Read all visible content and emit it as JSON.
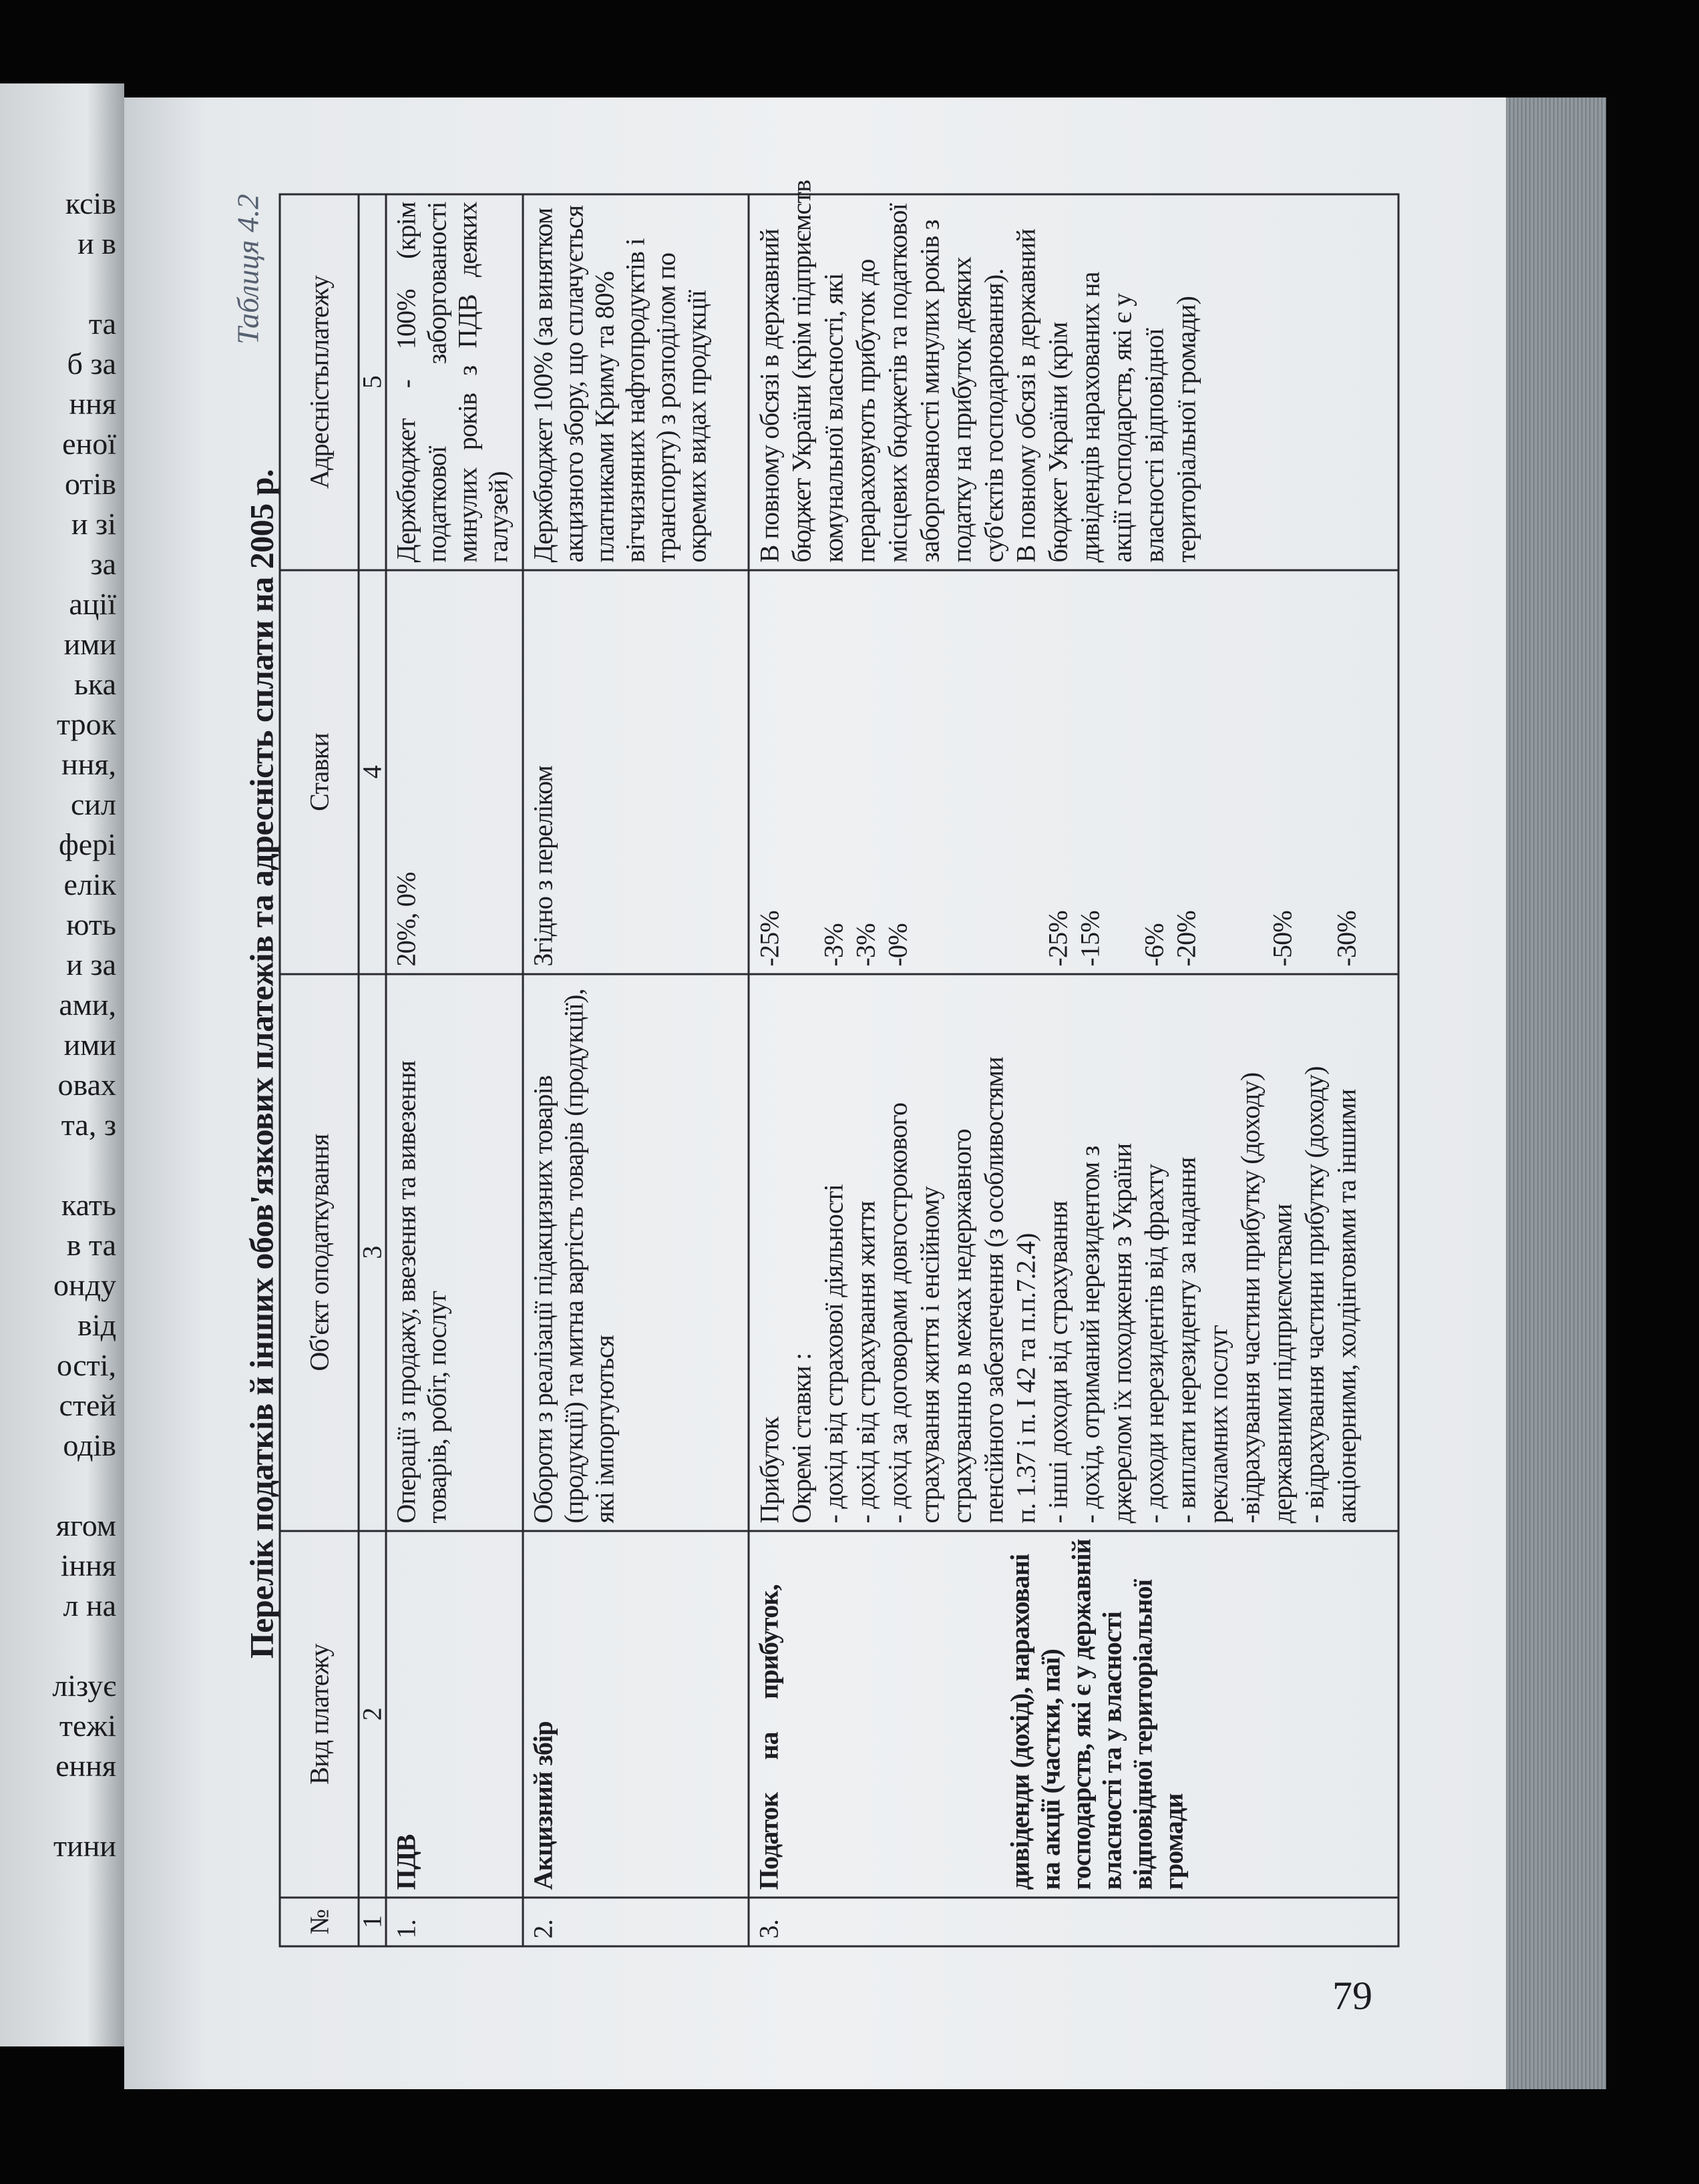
{
  "left_page": {
    "line_fragments": [
      "ксів",
      "и в",
      "",
      "та",
      "б за",
      "ння",
      "еної",
      "отів",
      "и зі",
      "за",
      "ації",
      "ими",
      "ька",
      "трок",
      "ння,",
      "сил",
      "фері",
      "елік",
      "ють",
      "и за",
      "ами,",
      "ими",
      "овах",
      "та, з",
      "",
      "кать",
      "в та",
      "онду",
      "від",
      "ості,",
      "стей",
      "одів",
      "",
      "ягом",
      "іння",
      "л на",
      "",
      "лізує",
      "тежі",
      "ення",
      "",
      "тини"
    ]
  },
  "caption": "Таблиця 4.2",
  "title": "Перелік податків й інших обов'язкових платежів та адресність сплати на 2005 р.",
  "table": {
    "headers": [
      "№",
      "Вид платежу",
      "Об'єкт оподаткування",
      "Ставки",
      "Адресністьплатежу"
    ],
    "column_numbers": [
      "1",
      "2",
      "3",
      "4",
      "5"
    ],
    "rows": [
      {
        "no": "1.",
        "type": "ПДВ",
        "object": "Операції з продажу, ввезення та вивезення товарів, робіт, послуг",
        "rates": "20%, 0%",
        "recipient": "Держбюджет - 100% (крім податкової заборгованості минулих років з ПДВ деяких галузей)"
      },
      {
        "no": "2.",
        "type": "Акцизний збір",
        "object": "Обороти з реалізації підакцизних товарів (продукції) та митна вартість товарів (продукції), які імпортуються",
        "rates": "Згідно з переліком",
        "recipient": "Держбюджет 100% (за винятком акцизного збору, що сплачується платниками Криму та 80% вітчизняних нафтопродуктів і транспорту) з розподілом по окремих видах продукції"
      },
      {
        "no": "3.",
        "type": "Податок на прибуток,",
        "type_extra": "дивіденди (дохід), нараховані на акції (частки, паї) господарств, які є у державній власності та у власності відповідної територіальної громади",
        "object_lines": [
          "Прибуток",
          "Окремі ставки :",
          "- дохід від страхової діяльності",
          "- дохід від страхування життя",
          "- дохід за договорами довгострокового",
          "страхування життя і енсійному",
          "страхуванню в межах недержавного",
          "пенсійного забезпечення (з особливостями",
          "п. 1.37 і п. І 42 та п.п.7.2.4)",
          "- інші доходи від страхування",
          "- дохід, отриманий нерезидентом з",
          "джерелом їх походження з України",
          "- доходи нерезидентів від фрахту",
          "- виплати нерезиденту за надання",
          "рекламних послуг",
          "-відрахування частини прибутку (доходу)",
          "державними підприємствами",
          "- відрахування частини прибутку (доходу)",
          "акціонерними, холдінговими та іншими"
        ],
        "rate_lines": [
          "-25%",
          "",
          "-3%",
          "-3%",
          "-0%",
          "",
          "",
          "",
          "",
          "-25%",
          "-15%",
          "",
          "-6%",
          "-20%",
          "",
          "",
          "-50%",
          "",
          "-30%"
        ],
        "recipient_lines": [
          "В повному обсязі в державний",
          "бюджет України (крім підприємств",
          "комунальної власності, які",
          "перараховують прибуток до",
          "місцевих бюджетів та податкової",
          "заборгованості минулих років з",
          "податку на прибуток деяких",
          "суб'єктів господарювання).",
          "В повному обсязі в державний",
          "бюджет України (крім",
          "дивідендів нарахованих на",
          "акції господарств, які є у",
          "власності відповідної",
          "територіальної громади)"
        ]
      }
    ]
  },
  "page_number": "79"
}
